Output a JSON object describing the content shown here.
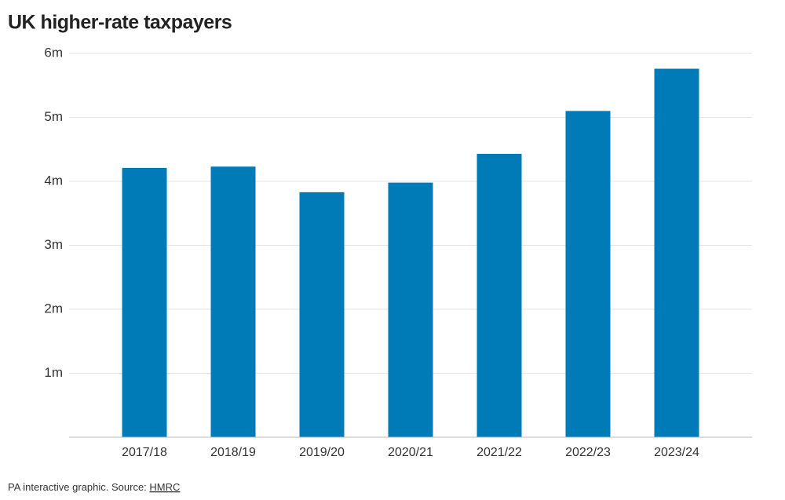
{
  "chart_data": {
    "type": "bar",
    "title": "UK higher-rate taxpayers",
    "categories": [
      "2017/18",
      "2018/19",
      "2019/20",
      "2020/21",
      "2021/22",
      "2022/23",
      "2023/24"
    ],
    "values": [
      4.21,
      4.23,
      3.83,
      3.98,
      4.43,
      5.1,
      5.76
    ],
    "color": "#007bb8",
    "ylim": [
      0,
      6
    ],
    "yticks": [
      {
        "value": 1,
        "label": "1m"
      },
      {
        "value": 2,
        "label": "2m"
      },
      {
        "value": 3,
        "label": "3m"
      },
      {
        "value": 4,
        "label": "4m"
      },
      {
        "value": 5,
        "label": "5m"
      },
      {
        "value": 6,
        "label": "6m"
      }
    ],
    "grid": true,
    "source_prefix": "PA interactive graphic. Source:",
    "source_link": "HMRC"
  }
}
